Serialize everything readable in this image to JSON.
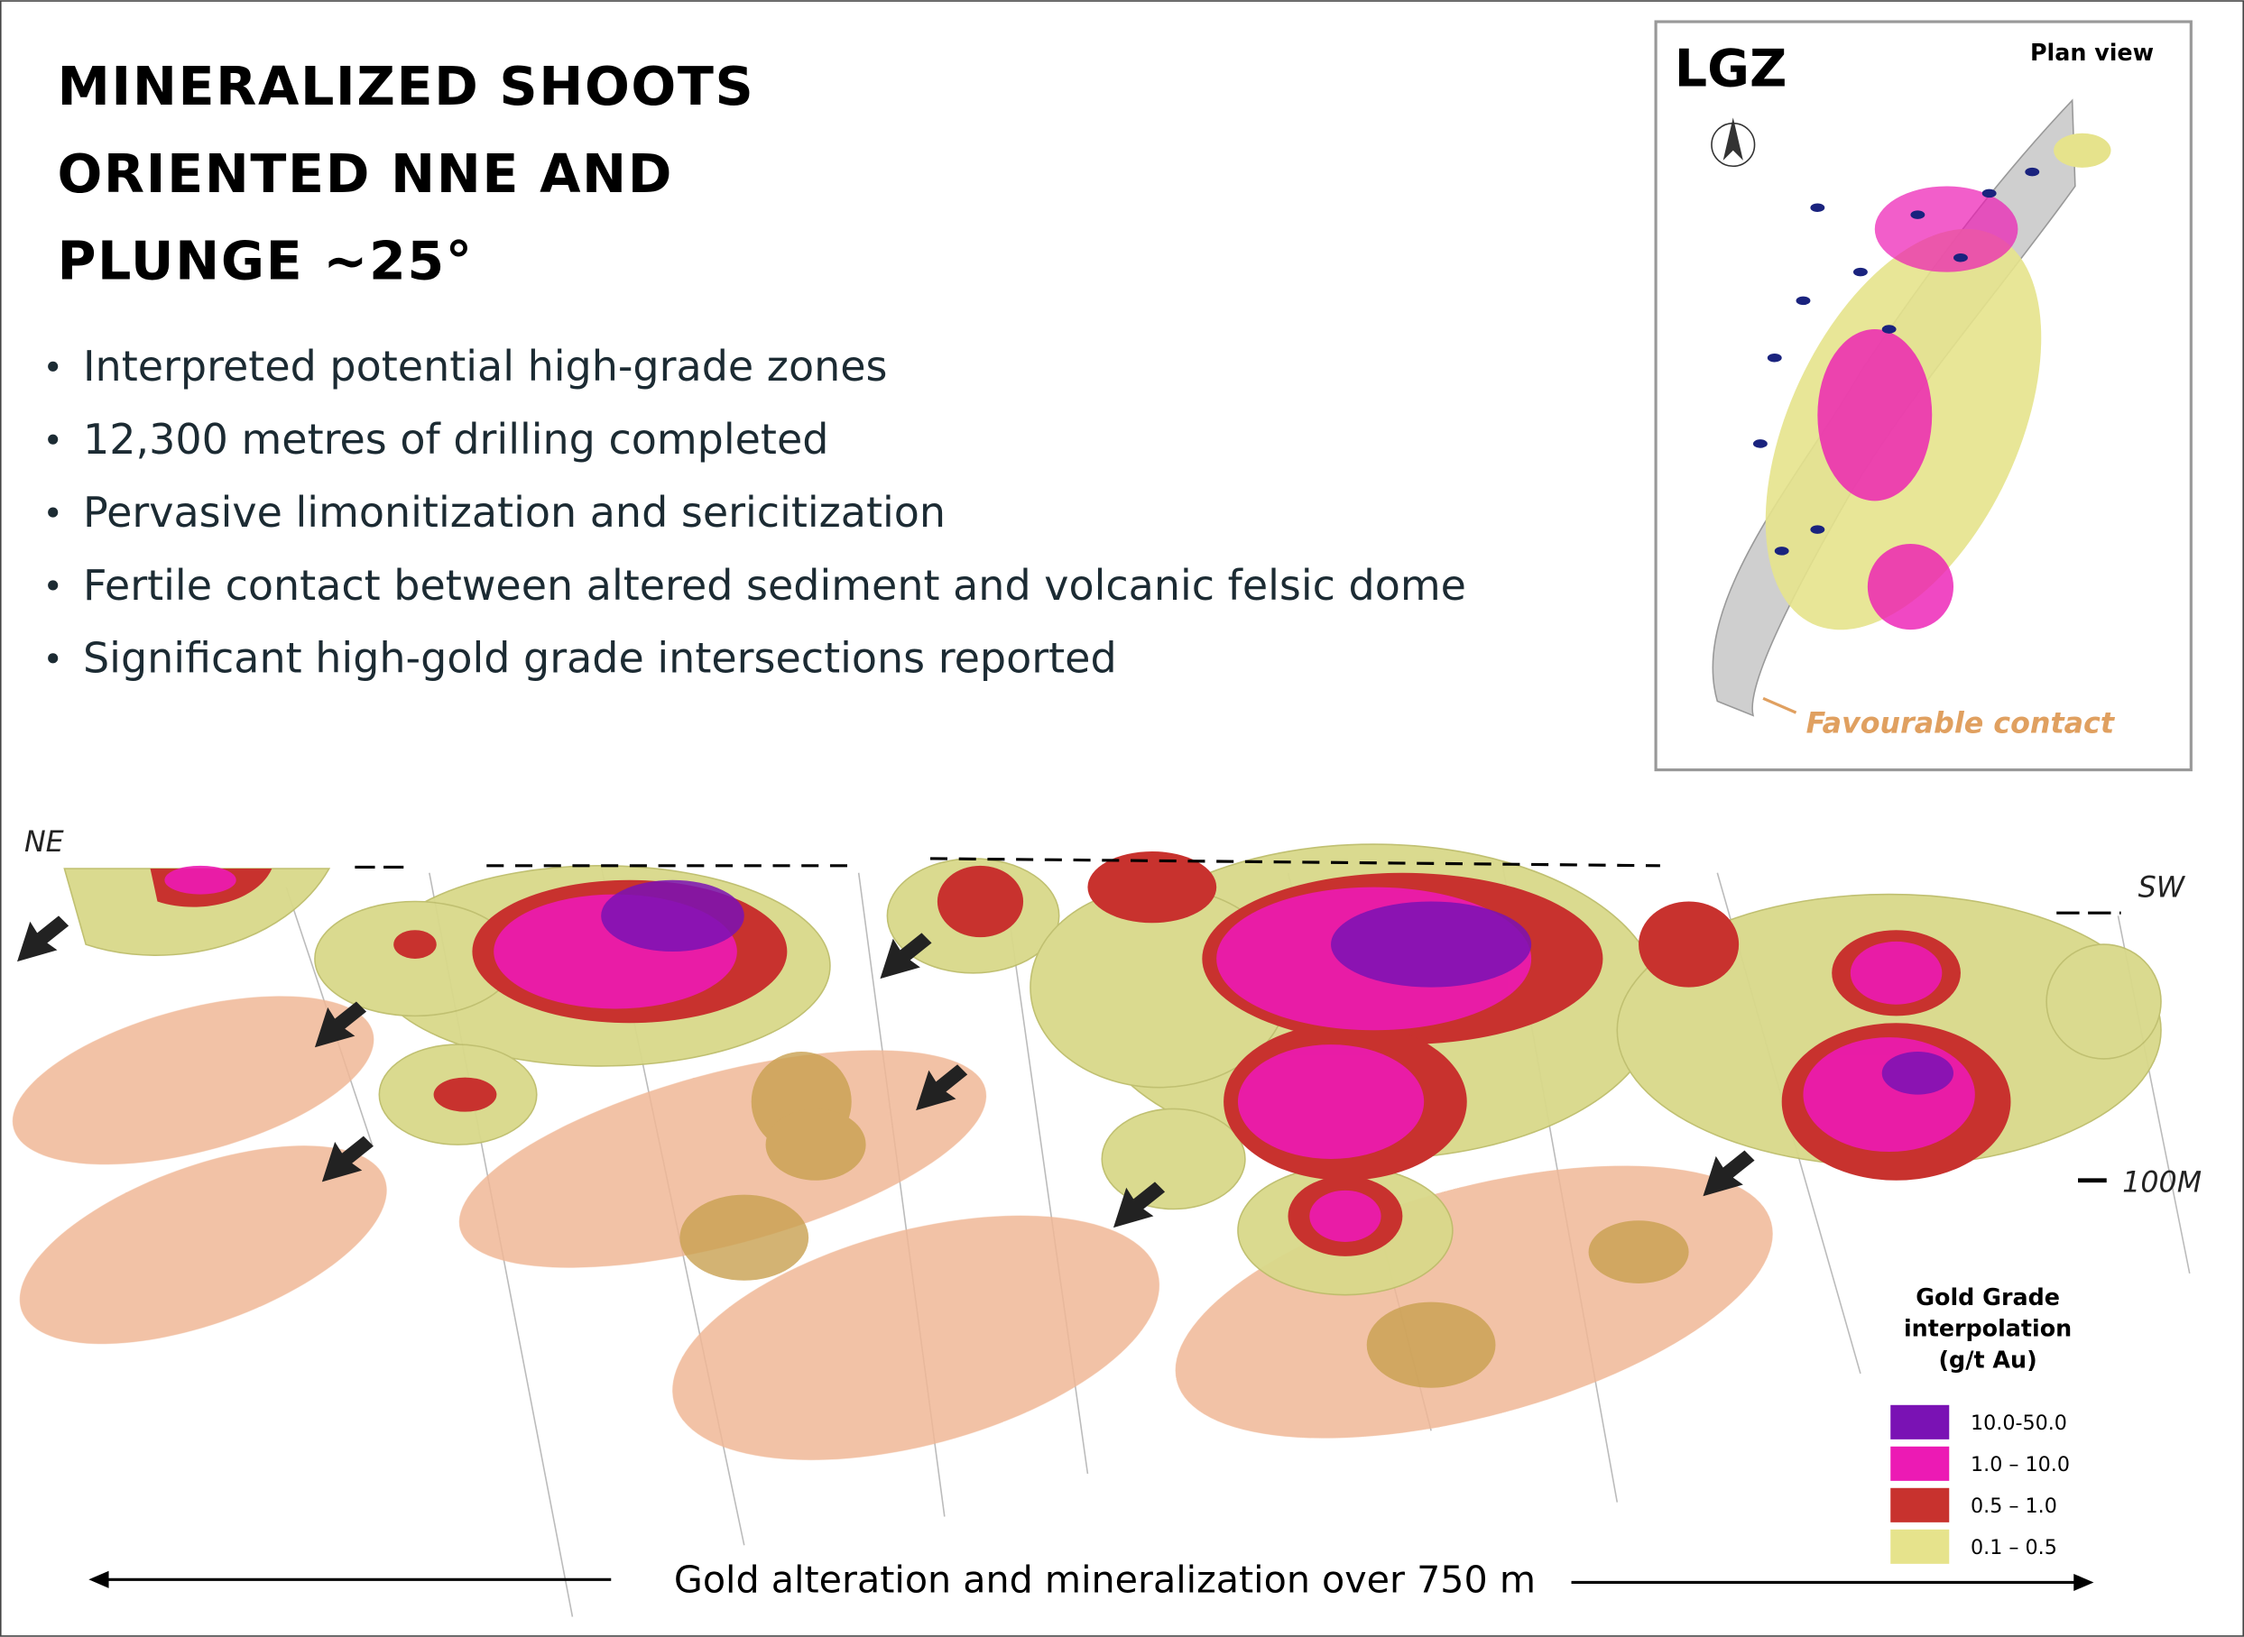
{
  "header": {
    "title_lines": [
      "MINERALIZED SHOOTS",
      "ORIENTED NNE AND",
      "PLUNGE ~25°"
    ]
  },
  "bullets": [
    "Interpreted potential high-grade zones",
    "12,300 metres of drilling completed",
    "Pervasive limonitization and sericitization",
    "Fertile contact between altered sediment and volcanic felsic dome",
    "Significant  high-gold grade intersections reported"
  ],
  "inset": {
    "label": "LGZ",
    "view": "Plan view",
    "annotation": "Favourable contact"
  },
  "section": {
    "left_label": "NE",
    "right_label": "SW",
    "scale_label": "100M",
    "caption": "Gold alteration and mineralization over 750 m"
  },
  "legend": {
    "title_lines": [
      "Gold Grade",
      "interpolation",
      "(g/t Au)"
    ],
    "items": [
      {
        "label": "10.0-50.0",
        "color": "#7a12b4"
      },
      {
        "label": "1.0 – 10.0",
        "color": "#ec1ab4"
      },
      {
        "label": "0.5 – 1.0",
        "color": "#c8322e"
      },
      {
        "label": "0.1 – 0.5",
        "color": "#e6e38c"
      }
    ]
  }
}
